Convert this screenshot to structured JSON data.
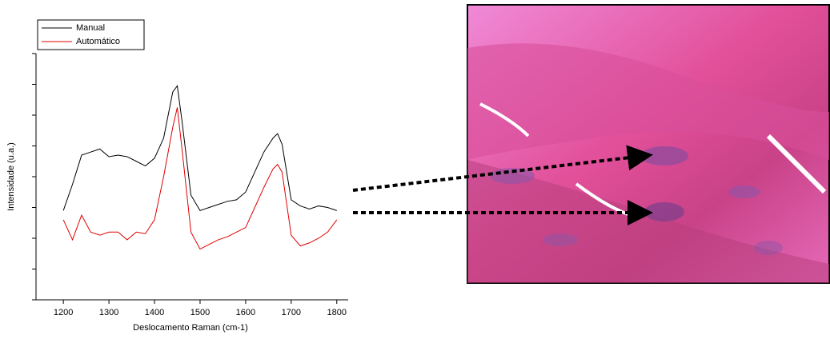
{
  "chart_data": {
    "type": "line",
    "xlabel": "Deslocamento Raman (cm-1)",
    "ylabel": "Intensidade (u.a.)",
    "x": [
      1200,
      1220,
      1240,
      1260,
      1280,
      1300,
      1320,
      1340,
      1360,
      1380,
      1400,
      1420,
      1440,
      1450,
      1460,
      1480,
      1500,
      1520,
      1540,
      1560,
      1580,
      1600,
      1620,
      1640,
      1660,
      1670,
      1680,
      1700,
      1720,
      1740,
      1760,
      1780,
      1800
    ],
    "series": [
      {
        "name": "Manual",
        "color": "#000000",
        "values": [
          5.8,
          7.5,
          9.4,
          9.6,
          9.8,
          9.3,
          9.4,
          9.3,
          9.0,
          8.7,
          9.2,
          10.5,
          13.5,
          13.9,
          11.7,
          6.8,
          5.8,
          6.0,
          6.2,
          6.4,
          6.5,
          7.0,
          8.3,
          9.6,
          10.5,
          10.8,
          10.1,
          6.5,
          6.1,
          5.9,
          6.1,
          6.0,
          5.8
        ]
      },
      {
        "name": "Automático",
        "color": "#e00000",
        "values": [
          5.2,
          3.9,
          5.5,
          4.4,
          4.2,
          4.4,
          4.4,
          3.9,
          4.4,
          4.3,
          5.2,
          8.0,
          11.2,
          12.5,
          9.9,
          4.4,
          3.3,
          3.6,
          3.9,
          4.1,
          4.4,
          4.7,
          6.0,
          7.3,
          8.5,
          8.8,
          8.3,
          4.2,
          3.5,
          3.7,
          4.0,
          4.4,
          5.2
        ]
      }
    ],
    "xlim": [
      1140,
      1825
    ],
    "xticks": [
      1200,
      1300,
      1400,
      1500,
      1600,
      1700,
      1800
    ],
    "ylim": [
      0,
      16
    ],
    "yticks": [
      0,
      2,
      4,
      6,
      8,
      10,
      12,
      14,
      16
    ],
    "legend": "top-left"
  }
}
